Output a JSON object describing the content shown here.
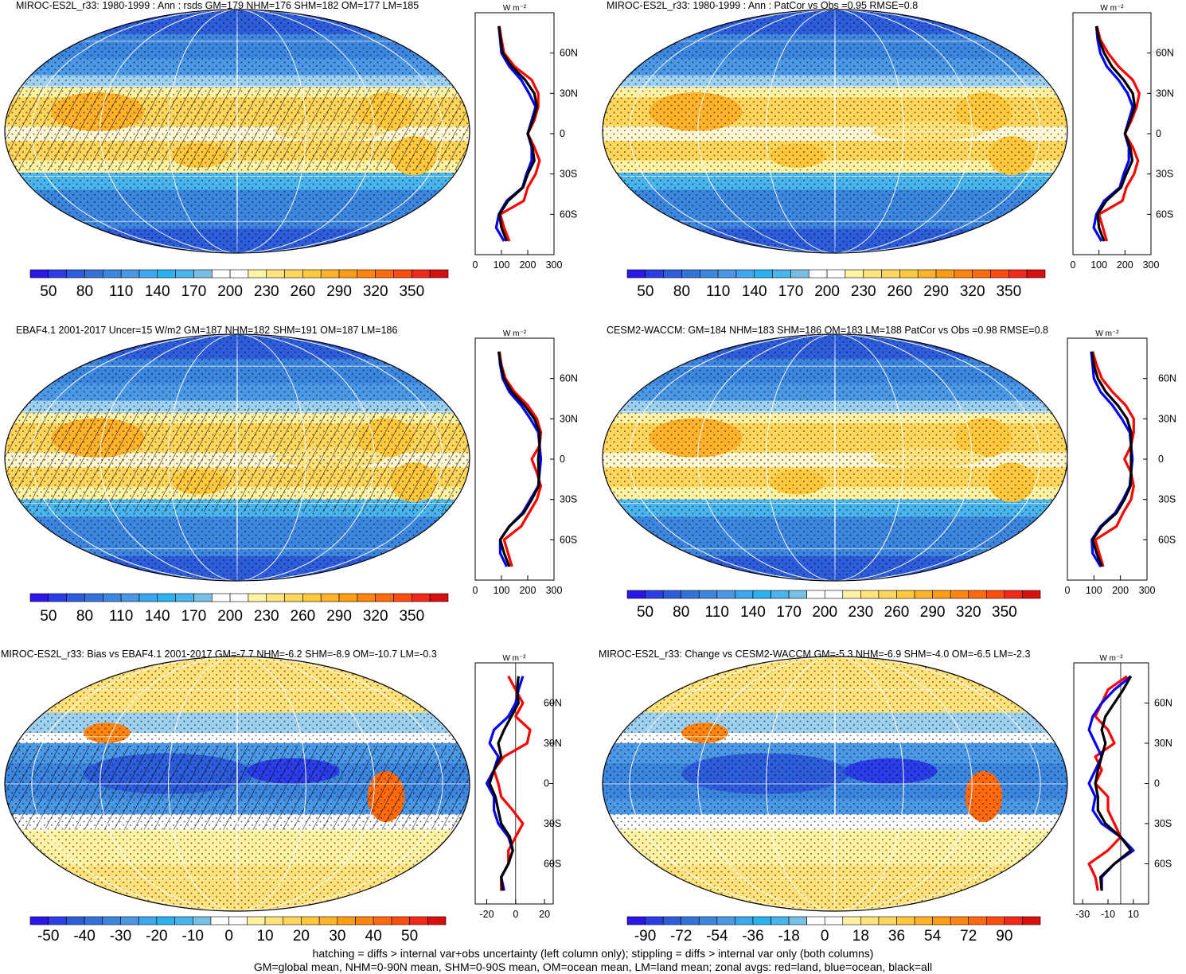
{
  "footer": {
    "line1": "hatching = diffs > internal var+obs uncertainty (left column only); stippling = diffs > internal var only (both columns)",
    "line2": "GM=global mean, NHM=0-90N mean, SHM=0-90S mean, OM=ocean mean, LM=land mean; zonal avgs: red=land, blue=ocean, black=all"
  },
  "lat_labels": [
    "60N",
    "30N",
    "0",
    "30S",
    "60S"
  ],
  "colors": {
    "land": "#ff0000",
    "ocean": "#0000ff",
    "all": "#000000",
    "scale": [
      "#2b16e6",
      "#2a3de8",
      "#2d5ddb",
      "#3272d9",
      "#3d86df",
      "#4a98e6",
      "#3da7ee",
      "#2cb2ef",
      "#4ab4ec",
      "#78bfe6",
      "#ffffff",
      "#ffffff",
      "#fff3a3",
      "#ffe27a",
      "#ffd65c",
      "#ffc83d",
      "#ffb22a",
      "#ff9d14",
      "#ff8410",
      "#ff6a0e",
      "#ff4d10",
      "#f2291a",
      "#d90f0f"
    ]
  },
  "chart_data": [
    {
      "type": "heatmap",
      "panel": "model_clim",
      "title": "MIROC-ES2L_r33: 1980-1999 : Ann : rsds GM=179 NHM=176 SHM=182 OM=177 LM=185",
      "colorbar_labels": [
        "50",
        "80",
        "110",
        "140",
        "170",
        "200",
        "230",
        "260",
        "290",
        "320",
        "350"
      ],
      "zonal_xticks": [
        "0",
        "100",
        "200",
        "300"
      ],
      "zonal_xrange": [
        0,
        300
      ],
      "zonal_unit": "W m⁻²",
      "zonal": {
        "lat": [
          80,
          70,
          60,
          50,
          40,
          30,
          20,
          10,
          0,
          -10,
          -20,
          -30,
          -40,
          -50,
          -60,
          -70,
          -80
        ],
        "land": [
          92,
          100,
          110,
          150,
          215,
          240,
          240,
          225,
          200,
          225,
          245,
          230,
          200,
          185,
          95,
          110,
          130
        ],
        "ocean": [
          90,
          95,
          100,
          130,
          175,
          205,
          230,
          215,
          200,
          215,
          215,
          195,
          180,
          120,
          90,
          80,
          110
        ],
        "all": [
          90,
          97,
          105,
          140,
          190,
          225,
          235,
          220,
          200,
          218,
          225,
          200,
          182,
          125,
          92,
          100,
          120
        ]
      }
    },
    {
      "type": "heatmap",
      "panel": "model_clim_cmp",
      "title": "MIROC-ES2L_r33: 1980-1999 : Ann : PatCor vs Obs =0.95 RMSE=0.8",
      "colorbar_labels": [
        "50",
        "80",
        "110",
        "140",
        "170",
        "200",
        "230",
        "260",
        "290",
        "320",
        "350"
      ],
      "zonal_xticks": [
        "0",
        "100",
        "200",
        "300"
      ],
      "zonal_xrange": [
        0,
        300
      ],
      "zonal_unit": "W m⁻²",
      "zonal": {
        "lat": [
          80,
          70,
          60,
          50,
          40,
          30,
          20,
          10,
          0,
          -10,
          -20,
          -30,
          -40,
          -50,
          -60,
          -70,
          -80
        ],
        "land": [
          92,
          105,
          135,
          175,
          230,
          255,
          245,
          225,
          200,
          230,
          250,
          235,
          205,
          190,
          100,
          115,
          130
        ],
        "ocean": [
          90,
          95,
          105,
          130,
          175,
          210,
          230,
          215,
          200,
          215,
          215,
          195,
          180,
          120,
          90,
          80,
          110
        ],
        "all": [
          90,
          100,
          120,
          150,
          195,
          230,
          238,
          220,
          200,
          220,
          228,
          205,
          185,
          128,
          95,
          100,
          120
        ]
      }
    },
    {
      "type": "heatmap",
      "panel": "obs",
      "title": "EBAF4.1 2001-2017 Uncer=15 W/m2 GM=187 NHM=182 SHM=191 OM=187 LM=186",
      "colorbar_labels": [
        "50",
        "80",
        "110",
        "140",
        "170",
        "200",
        "230",
        "260",
        "290",
        "320",
        "350"
      ],
      "zonal_xticks": [
        "0",
        "100",
        "200",
        "300"
      ],
      "zonal_xrange": [
        0,
        300
      ],
      "zonal_unit": "W m⁻²",
      "zonal": {
        "lat": [
          80,
          70,
          60,
          50,
          40,
          30,
          20,
          10,
          0,
          -10,
          -20,
          -30,
          -40,
          -50,
          -60,
          -70,
          -80
        ],
        "land": [
          92,
          100,
          115,
          150,
          200,
          235,
          250,
          245,
          215,
          235,
          250,
          235,
          205,
          175,
          110,
          125,
          140
        ],
        "ocean": [
          90,
          95,
          105,
          130,
          175,
          210,
          240,
          245,
          250,
          245,
          240,
          210,
          180,
          130,
          95,
          95,
          120
        ],
        "all": [
          90,
          98,
          110,
          140,
          188,
          225,
          245,
          245,
          240,
          242,
          242,
          215,
          185,
          130,
          95,
          110,
          130
        ]
      }
    },
    {
      "type": "heatmap",
      "panel": "obs_cmp",
      "title": "CESM2-WACCM: GM=184 NHM=183 SHM=186 OM=183 LM=188 PatCor vs Obs =0.98 RMSE=0.8",
      "colorbar_labels": [
        "50",
        "80",
        "110",
        "140",
        "170",
        "200",
        "230",
        "260",
        "290",
        "320",
        "350"
      ],
      "zonal_xticks": [
        "0",
        "100",
        "200",
        "300"
      ],
      "zonal_xrange": [
        0,
        300
      ],
      "zonal_unit": "W m⁻²",
      "zonal": {
        "lat": [
          80,
          70,
          60,
          50,
          40,
          30,
          20,
          10,
          0,
          -10,
          -20,
          -30,
          -40,
          -50,
          -60,
          -70,
          -80
        ],
        "land": [
          95,
          110,
          130,
          170,
          220,
          250,
          250,
          240,
          215,
          240,
          250,
          240,
          210,
          185,
          105,
          120,
          135
        ],
        "ocean": [
          90,
          95,
          100,
          125,
          170,
          205,
          235,
          240,
          245,
          240,
          235,
          210,
          180,
          125,
          92,
          95,
          125
        ],
        "all": [
          92,
          100,
          115,
          145,
          190,
          225,
          240,
          240,
          240,
          240,
          238,
          215,
          185,
          130,
          95,
          110,
          130
        ]
      }
    },
    {
      "type": "heatmap",
      "panel": "bias",
      "title": "MIROC-ES2L_r33: Bias vs EBAF4.1 2001-2017 GM=-7.7 NHM=-6.2 SHM=-8.9 OM=-10.7 LM=-0.3",
      "colorbar_labels": [
        "-50",
        "-40",
        "-30",
        "-20",
        "-10",
        "0",
        "10",
        "20",
        "30",
        "40",
        "50"
      ],
      "zonal_xticks": [
        "-20",
        "0",
        "20"
      ],
      "zonal_xrange": [
        -28,
        26
      ],
      "zonal_unit": "W m⁻²",
      "zonal": {
        "lat": [
          80,
          70,
          60,
          50,
          40,
          30,
          20,
          10,
          0,
          -10,
          -20,
          -30,
          -40,
          -50,
          -60,
          -70,
          -80
        ],
        "land": [
          -5,
          0,
          5,
          0,
          10,
          8,
          -8,
          -15,
          -12,
          -10,
          -2,
          5,
          0,
          -5,
          -5,
          -10,
          -10
        ],
        "ocean": [
          5,
          2,
          0,
          -5,
          -15,
          -18,
          -12,
          -15,
          -20,
          -15,
          -15,
          -12,
          -5,
          -2,
          -5,
          -10,
          -8
        ],
        "all": [
          2,
          1,
          2,
          -3,
          -8,
          -12,
          -10,
          -15,
          -18,
          -14,
          -12,
          -10,
          -4,
          -2,
          -5,
          -10,
          -9
        ]
      }
    },
    {
      "type": "heatmap",
      "panel": "change",
      "title": "MIROC-ES2L_r33: Change vs CESM2-WACCM GM=-5.3 NHM=-6.9 SHM=-4.0 OM=-6.5 LM=-2.3",
      "colorbar_labels": [
        "-90",
        "-72",
        "-54",
        "-36",
        "-18",
        "0",
        "18",
        "36",
        "54",
        "72",
        "90"
      ],
      "zonal_xticks": [
        "-30",
        "-10",
        "10"
      ],
      "zonal_xrange": [
        -37,
        22
      ],
      "zonal_unit": "W m⁻²",
      "zonal": {
        "lat": [
          80,
          70,
          60,
          50,
          40,
          30,
          20,
          10,
          0,
          -10,
          -20,
          -30,
          -40,
          -50,
          -60,
          -70,
          -80
        ],
        "land": [
          5,
          -10,
          -15,
          -20,
          -10,
          -5,
          -20,
          -15,
          -20,
          -10,
          -10,
          -5,
          0,
          -10,
          -25,
          -20,
          -18
        ],
        "ocean": [
          8,
          -5,
          -15,
          -22,
          -25,
          -20,
          -15,
          -20,
          -25,
          -20,
          -22,
          -15,
          0,
          10,
          -5,
          -15,
          -15
        ],
        "all": [
          8,
          2,
          -5,
          -12,
          -15,
          -12,
          -15,
          -18,
          -20,
          -18,
          -18,
          -12,
          0,
          8,
          -5,
          -16,
          -15
        ]
      }
    }
  ]
}
